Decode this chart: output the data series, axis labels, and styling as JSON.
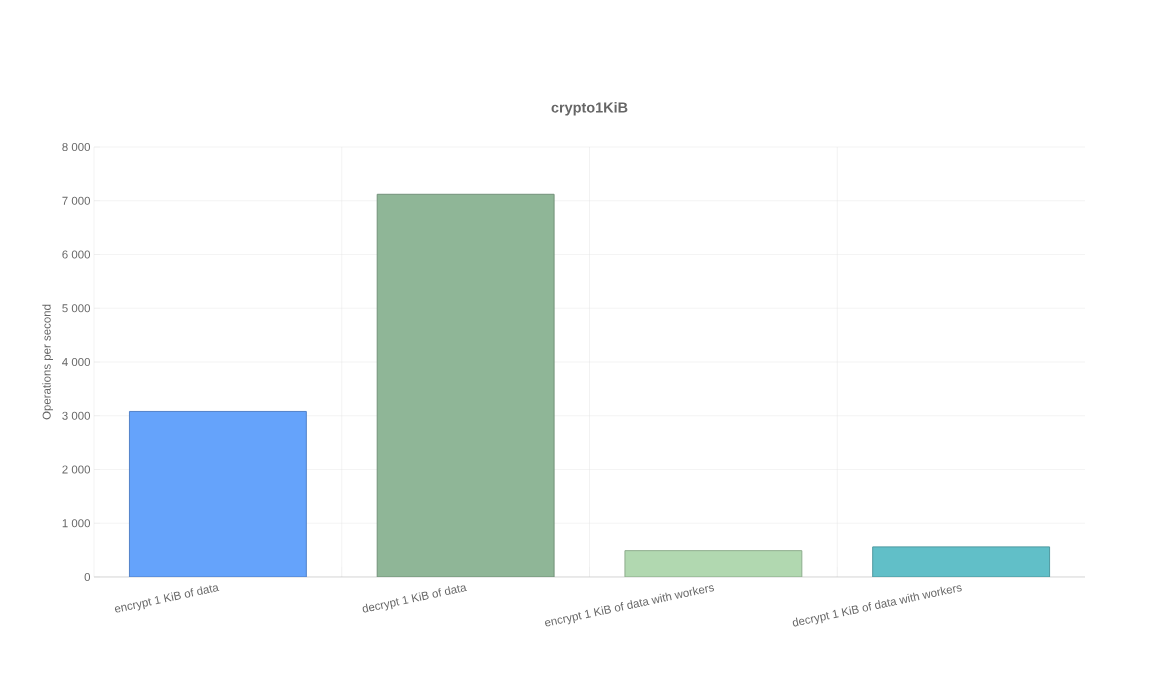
{
  "chart_data": {
    "type": "bar",
    "title": "crypto1KiB",
    "ylabel": "Operations per second",
    "categories": [
      "encrypt 1 KiB of data",
      "decrypt 1 KiB of data",
      "encrypt 1 KiB of data with workers",
      "decrypt 1 KiB of data with workers"
    ],
    "values": [
      3080,
      7120,
      490,
      560
    ],
    "colors": [
      "#65a3fb",
      "#8fb697",
      "#b1d8b0",
      "#61bfc8"
    ],
    "ylim": [
      0,
      8000
    ],
    "yticks": [
      {
        "value": 0,
        "label": "0"
      },
      {
        "value": 1000,
        "label": "1 000"
      },
      {
        "value": 2000,
        "label": "2 000"
      },
      {
        "value": 3000,
        "label": "3 000"
      },
      {
        "value": 4000,
        "label": "4 000"
      },
      {
        "value": 5000,
        "label": "5 000"
      },
      {
        "value": 6000,
        "label": "6 000"
      },
      {
        "value": 7000,
        "label": "7 000"
      },
      {
        "value": 8000,
        "label": "8 000"
      }
    ],
    "grid": true
  }
}
